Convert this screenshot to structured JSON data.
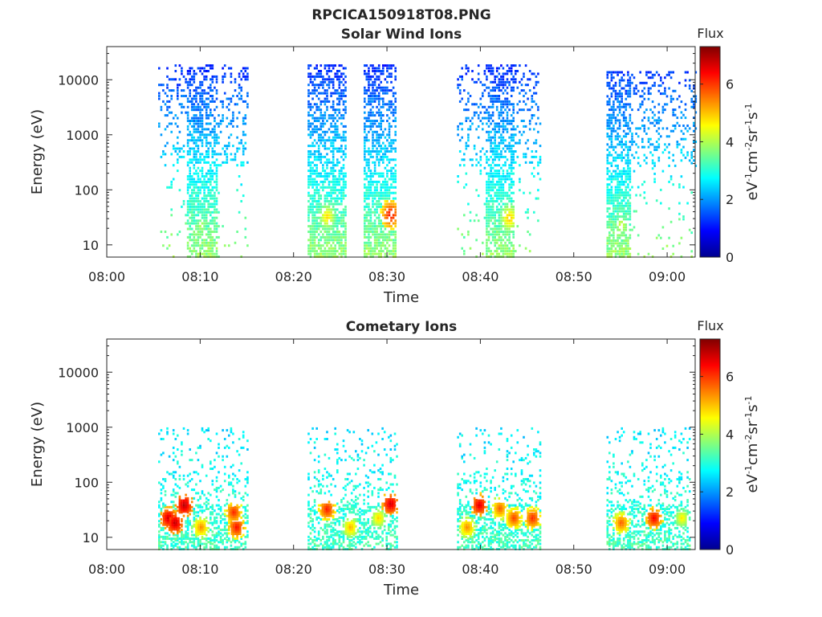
{
  "figure_title": "RPCICA150918T08.PNG",
  "chart_data": [
    {
      "type": "heatmap",
      "title": "Solar Wind Ions",
      "xlabel": "Time",
      "ylabel": "Energy (eV)",
      "x_ticks": [
        "08:00",
        "08:10",
        "08:20",
        "08:30",
        "08:40",
        "08:50",
        "09:00"
      ],
      "y_ticks": [
        "10",
        "100",
        "1000",
        "10000"
      ],
      "xlim_minutes": [
        0,
        63
      ],
      "ylim_ev": [
        6,
        40000
      ],
      "yscale": "log",
      "colorbar": {
        "title": "Flux",
        "label": "eV-1cm-2sr-1s-1",
        "ticks": [
          "0",
          "2",
          "4",
          "6"
        ],
        "range": [
          0,
          7.3
        ],
        "colormap": "jet"
      },
      "bursts": [
        {
          "start_min": 5.5,
          "end_min": 15.0,
          "core_start_min": 8.5,
          "core_end_min": 11.8,
          "emax_ev": 20000,
          "peak_ev": 22,
          "peak_flux": 4.2,
          "peak_min": 10.0
        },
        {
          "start_min": 21.5,
          "end_min": 25.5,
          "core_start_min": 21.5,
          "core_end_min": 25.5,
          "emax_ev": 20000,
          "peak_ev": 32,
          "peak_flux": 5.0,
          "peak_min": 23.5
        },
        {
          "start_min": 27.5,
          "end_min": 31.0,
          "core_start_min": 27.5,
          "core_end_min": 31.0,
          "emax_ev": 20000,
          "peak_ev": 35,
          "peak_flux": 6.5,
          "peak_min": 30.3
        },
        {
          "start_min": 37.5,
          "end_min": 46.5,
          "core_start_min": 40.5,
          "core_end_min": 43.5,
          "emax_ev": 20000,
          "peak_ev": 30,
          "peak_flux": 5.2,
          "peak_min": 43.0
        },
        {
          "start_min": 53.5,
          "end_min": 63.0,
          "core_start_min": 53.5,
          "core_end_min": 56.0,
          "emax_ev": 15000,
          "peak_ev": 22,
          "peak_flux": 4.5,
          "peak_min": 55.0
        }
      ]
    },
    {
      "type": "heatmap",
      "title": "Cometary Ions",
      "xlabel": "Time",
      "ylabel": "Energy (eV)",
      "x_ticks": [
        "08:00",
        "08:10",
        "08:20",
        "08:30",
        "08:40",
        "08:50",
        "09:00"
      ],
      "y_ticks": [
        "10",
        "100",
        "1000",
        "10000"
      ],
      "xlim_minutes": [
        0,
        63
      ],
      "ylim_ev": [
        6,
        40000
      ],
      "yscale": "log",
      "colorbar": {
        "title": "Flux",
        "label": "eV-1cm-2sr-1s-1",
        "ticks": [
          "0",
          "2",
          "4",
          "6"
        ],
        "range": [
          0,
          7.3
        ],
        "colormap": "jet"
      },
      "hotspots": [
        {
          "min": 6.5,
          "ev": 22,
          "flux": 6.8
        },
        {
          "min": 7.2,
          "ev": 18,
          "flux": 6.9
        },
        {
          "min": 8.2,
          "ev": 38,
          "flux": 7.0
        },
        {
          "min": 10.0,
          "ev": 15,
          "flux": 5.5
        },
        {
          "min": 13.5,
          "ev": 28,
          "flux": 6.2
        },
        {
          "min": 13.8,
          "ev": 15,
          "flux": 6.4
        },
        {
          "min": 23.5,
          "ev": 32,
          "flux": 6.3
        },
        {
          "min": 26.0,
          "ev": 15,
          "flux": 5.2
        },
        {
          "min": 29.0,
          "ev": 22,
          "flux": 5.0
        },
        {
          "min": 30.3,
          "ev": 40,
          "flux": 6.8
        },
        {
          "min": 38.5,
          "ev": 15,
          "flux": 5.5
        },
        {
          "min": 39.8,
          "ev": 38,
          "flux": 6.7
        },
        {
          "min": 42.0,
          "ev": 33,
          "flux": 5.8
        },
        {
          "min": 43.5,
          "ev": 22,
          "flux": 6.0
        },
        {
          "min": 45.5,
          "ev": 22,
          "flux": 6.2
        },
        {
          "min": 55.0,
          "ev": 18,
          "flux": 5.8
        },
        {
          "min": 58.5,
          "ev": 22,
          "flux": 6.5
        },
        {
          "min": 61.5,
          "ev": 22,
          "flux": 4.8
        }
      ],
      "bursts": [
        {
          "start_min": 5.5,
          "end_min": 15.0,
          "emax_ev": 1000
        },
        {
          "start_min": 21.5,
          "end_min": 31.0,
          "emax_ev": 1000
        },
        {
          "start_min": 37.5,
          "end_min": 46.5,
          "emax_ev": 1000
        },
        {
          "start_min": 53.5,
          "end_min": 62.5,
          "emax_ev": 1000
        }
      ]
    }
  ]
}
